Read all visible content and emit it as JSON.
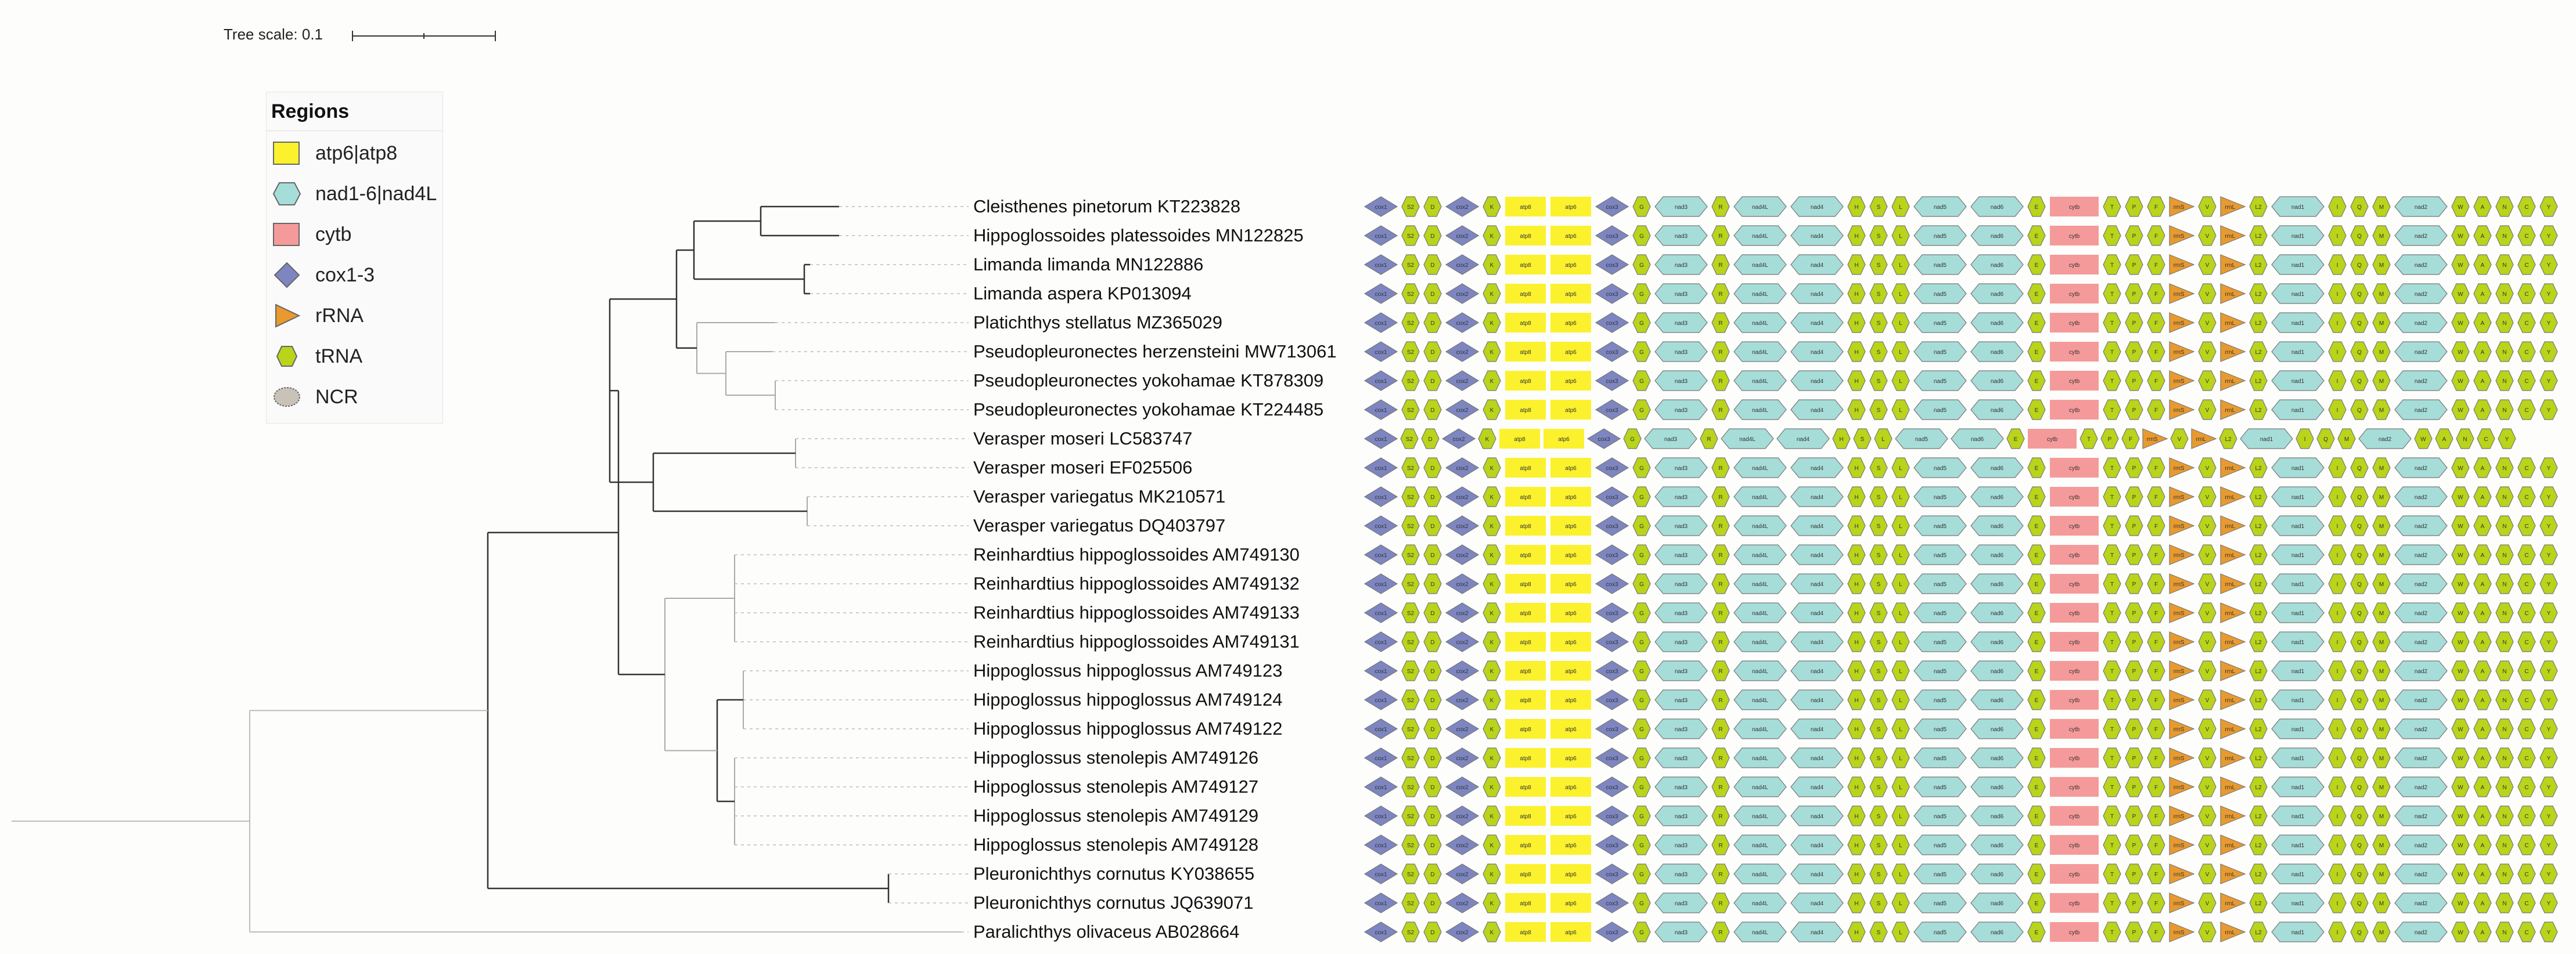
{
  "tree_scale": {
    "label": "Tree scale: 0.1"
  },
  "legend": {
    "title": "Regions",
    "items": [
      {
        "label": "atp6|atp8",
        "shape": "rect",
        "color": "#fbf12d"
      },
      {
        "label": "nad1-6|nad4L",
        "shape": "hexagon",
        "color": "#a6ddd8"
      },
      {
        "label": "cytb",
        "shape": "rect",
        "color": "#f59a9a"
      },
      {
        "label": "cox1-3",
        "shape": "diamond",
        "color": "#7d86c0"
      },
      {
        "label": "rRNA",
        "shape": "triangle",
        "color": "#e89a2f"
      },
      {
        "label": "tRNA",
        "shape": "hexagon-small",
        "color": "#b9d41a"
      },
      {
        "label": "NCR",
        "shape": "ellipse",
        "color": "#c9c2b8"
      }
    ]
  },
  "colors": {
    "cox": "#7d86c0",
    "trna": "#b9d41a",
    "atp": "#fbf12d",
    "nad": "#a6ddd8",
    "cytb": "#f59a9a",
    "rrna": "#e89a2f",
    "ncr": "#c9c2b8",
    "branch": "#333333"
  },
  "taxa": [
    "Cleisthenes pinetorum KT223828",
    "Hippoglossoides platessoides MN122825",
    "Limanda limanda MN122886",
    "Limanda aspera KP013094",
    "Platichthys stellatus MZ365029",
    "Pseudopleuronectes herzensteini MW713061",
    "Pseudopleuronectes yokohamae KT878309",
    "Pseudopleuronectes yokohamae KT224485",
    "Verasper moseri LC583747",
    "Verasper moseri EF025506",
    "Verasper variegatus MK210571",
    "Verasper variegatus DQ403797",
    "Reinhardtius hippoglossoides AM749130",
    "Reinhardtius hippoglossoides AM749132",
    "Reinhardtius hippoglossoides AM749133",
    "Reinhardtius hippoglossoides AM749131",
    "Hippoglossus hippoglossus AM749123",
    "Hippoglossus hippoglossus AM749124",
    "Hippoglossus hippoglossus AM749122",
    "Hippoglossus stenolepis AM749126",
    "Hippoglossus stenolepis AM749127",
    "Hippoglossus stenolepis AM749129",
    "Hippoglossus stenolepis AM749128",
    "Pleuronichthys cornutus KY038655",
    "Pleuronichthys cornutus JQ639071",
    "Paralichthys olivaceus AB028664"
  ],
  "gene_order": [
    {
      "type": "cox",
      "label": "cox1"
    },
    {
      "type": "trna",
      "label": "S2"
    },
    {
      "type": "trna",
      "label": "D"
    },
    {
      "type": "cox",
      "label": "cox2"
    },
    {
      "type": "trna",
      "label": "K"
    },
    {
      "type": "atp",
      "label": "atp8"
    },
    {
      "type": "atp",
      "label": "atp6"
    },
    {
      "type": "cox",
      "label": "cox3"
    },
    {
      "type": "trna",
      "label": "G"
    },
    {
      "type": "nad",
      "label": "nad3"
    },
    {
      "type": "trna",
      "label": "R"
    },
    {
      "type": "nad",
      "label": "nad4L"
    },
    {
      "type": "nad",
      "label": "nad4"
    },
    {
      "type": "trna",
      "label": "H"
    },
    {
      "type": "trna",
      "label": "S"
    },
    {
      "type": "trna",
      "label": "L"
    },
    {
      "type": "nad",
      "label": "nad5"
    },
    {
      "type": "nad",
      "label": "nad6"
    },
    {
      "type": "trna",
      "label": "E"
    },
    {
      "type": "cytb",
      "label": "cytb"
    },
    {
      "type": "trna",
      "label": "T"
    },
    {
      "type": "trna",
      "label": "P"
    },
    {
      "type": "trna",
      "label": "F"
    },
    {
      "type": "rrna",
      "label": "rrnS"
    },
    {
      "type": "trna",
      "label": "V"
    },
    {
      "type": "rrna",
      "label": "rrnL"
    },
    {
      "type": "trna",
      "label": "L2"
    },
    {
      "type": "nad",
      "label": "nad1"
    },
    {
      "type": "trna",
      "label": "I"
    },
    {
      "type": "trna",
      "label": "Q"
    },
    {
      "type": "trna",
      "label": "M"
    },
    {
      "type": "nad",
      "label": "nad2"
    },
    {
      "type": "trna",
      "label": "W"
    },
    {
      "type": "trna",
      "label": "A"
    },
    {
      "type": "trna",
      "label": "N"
    },
    {
      "type": "trna",
      "label": "C"
    },
    {
      "type": "trna",
      "label": "Y"
    }
  ]
}
